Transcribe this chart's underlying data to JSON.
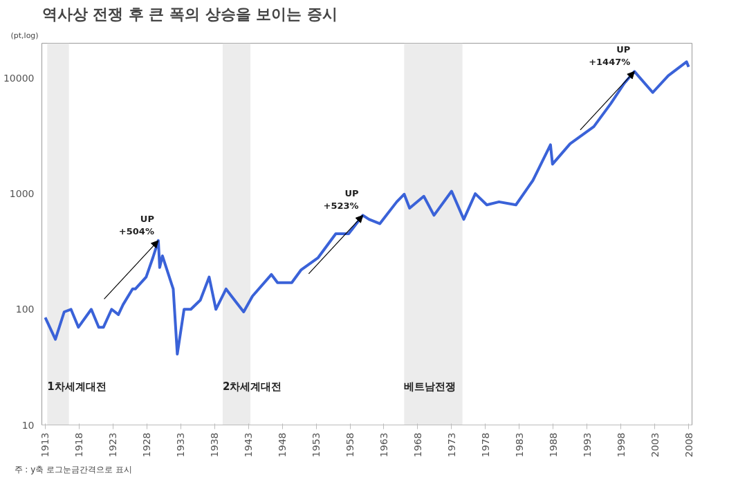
{
  "chart_data": {
    "type": "line",
    "title": "역사상 전쟁 후 큰 폭의 상승을 보이는 증시",
    "ylabel": "(pt,log)",
    "x": [
      1913,
      1914.5,
      1915.8,
      1916.8,
      1917.9,
      1919.8,
      1920.9,
      1921.6,
      1922.8,
      1923.8,
      1924.5,
      1925.9,
      1926.3,
      1927.9,
      1928.9,
      1929.7,
      1929.9,
      1930.3,
      1931.9,
      1932.5,
      1933.5,
      1934.5,
      1935.9,
      1937.2,
      1938.2,
      1939.7,
      1940.5,
      1942.3,
      1943.6,
      1946.4,
      1947.3,
      1949.4,
      1950.8,
      1953.3,
      1955.9,
      1957.8,
      1959.9,
      1960.8,
      1962.4,
      1964.9,
      1966.0,
      1966.8,
      1968.9,
      1970.4,
      1973.0,
      1974.8,
      1976.5,
      1978.2,
      1980.0,
      1982.5,
      1985.0,
      1987.6,
      1987.9,
      1990.5,
      1994.0,
      1996.5,
      1998.5,
      2000.0,
      2002.7,
      2005.0,
      2007.7,
      2008.0
    ],
    "series": [
      {
        "color": "#3a62d8",
        "values": [
          85,
          55,
          95,
          100,
          70,
          100,
          70,
          70,
          100,
          90,
          110,
          150,
          150,
          190,
          280,
          393,
          230,
          290,
          150,
          41,
          100,
          100,
          120,
          190,
          100,
          150,
          130,
          95,
          130,
          200,
          170,
          170,
          220,
          280,
          450,
          450,
          650,
          600,
          550,
          850,
          990,
          750,
          950,
          650,
          1050,
          600,
          1000,
          800,
          850,
          800,
          1300,
          2650,
          1800,
          2700,
          3800,
          6000,
          9000,
          11400,
          7500,
          10500,
          13800,
          12500
        ]
      }
    ],
    "log": "y",
    "xlim": [
      1912.5,
      2008.5
    ],
    "ylim": [
      10,
      20000
    ],
    "xticks": [
      1913,
      1918,
      1923,
      1928,
      1933,
      1938,
      1943,
      1948,
      1953,
      1958,
      1963,
      1968,
      1973,
      1978,
      1983,
      1988,
      1993,
      1998,
      2003,
      2008
    ],
    "yticks": [
      10,
      100,
      1000,
      10000
    ],
    "bands": [
      {
        "axis": "x",
        "from": 1913.3,
        "to": 1916.5,
        "label": "1차세계대전",
        "color": "#ececec"
      },
      {
        "axis": "x",
        "from": 1939.2,
        "to": 1943.3,
        "label": "2차세계대전",
        "color": "#ececec"
      },
      {
        "axis": "x",
        "from": 1966.0,
        "to": 1974.6,
        "label": "베트남전쟁",
        "color": "#ececec"
      }
    ],
    "annotations": [
      {
        "text": "UP\n+504%",
        "x": 1929.7,
        "y": 393
      },
      {
        "text": "UP\n+523%",
        "x": 1959.9,
        "y": 650
      },
      {
        "text": "UP\n+1447%",
        "x": 2000.0,
        "y": 11400
      },
      "주 : y축 로그눈금간격으로 표시"
    ],
    "marker": "none"
  }
}
